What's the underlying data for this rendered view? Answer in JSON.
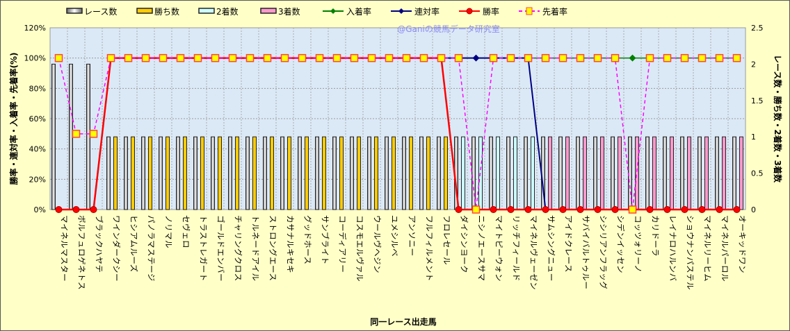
{
  "chart_data": {
    "type": "bar+line",
    "watermark": "@Ganiの競馬データ研究室",
    "xlabel": "同一レース出走馬",
    "ylabel_left": "勝率・連対率・入着率・先着率(%)",
    "ylabel_right": "レース数・勝ち数・2着数・3着数",
    "ylim_left": [
      0,
      120
    ],
    "yticks_left": [
      "0%",
      "20%",
      "40%",
      "60%",
      "80%",
      "100%",
      "120%"
    ],
    "ylim_right": [
      0,
      2.5
    ],
    "yticks_right": [
      "0",
      "0.5",
      "1",
      "1.5",
      "2",
      "2.5"
    ],
    "grid": true,
    "legend_position": "top",
    "legend": [
      {
        "name": "レース数",
        "kind": "bar",
        "color": "#ffffff"
      },
      {
        "name": "勝ち数",
        "kind": "bar",
        "color": "#ffcc00"
      },
      {
        "name": "2着数",
        "kind": "bar",
        "color": "#ccffff"
      },
      {
        "name": "3着数",
        "kind": "bar",
        "color": "#ff99cc"
      },
      {
        "name": "入着率",
        "kind": "line",
        "color": "#008000"
      },
      {
        "name": "連対率",
        "kind": "line",
        "color": "#000080"
      },
      {
        "name": "勝率",
        "kind": "line",
        "color": "#ff0000"
      },
      {
        "name": "先着率",
        "kind": "dash",
        "color": "#ff00ff"
      }
    ],
    "categories": [
      "マイネルマスター",
      "ボルフュロゲネトス",
      "ブラックハヤテ",
      "ワインダークシー",
      "ヒシアムルーズ",
      "パノラマステージ",
      "ノリマル",
      "セヴェロ",
      "トラストレガート",
      "ゴールドエンバー",
      "チャリングクロス",
      "トルネードアイル",
      "ストロングエース",
      "カサナルキセキ",
      "グッドホース",
      "サンブライト",
      "コーディアリー",
      "コスモエルヴァル",
      "ウールヴヘジン",
      "ユメシルベ",
      "アンソニー",
      "フルフィルメント",
      "フロレセール",
      "ダイシンヨーク",
      "ニシノエースサマ",
      "マイトピーウォン",
      "リッチフィールド",
      "マイネルヴェーゼン",
      "サムシングニュー",
      "アイドクレース",
      "サバイバルトゥルー",
      "シシリアンフラッグ",
      "シデンイッセン",
      "コッツォリーノ",
      "カリドーラ",
      "レイナロハルンバ",
      "ショウナンパステル",
      "マイネルリーヒム",
      "マイネルパーロル",
      "オーキッドワン"
    ],
    "races": [
      2,
      2,
      2,
      1,
      1,
      1,
      1,
      1,
      1,
      1,
      1,
      1,
      1,
      1,
      1,
      1,
      1,
      1,
      1,
      1,
      1,
      1,
      1,
      1,
      1,
      1,
      1,
      1,
      1,
      1,
      1,
      1,
      1,
      1,
      1,
      1,
      1,
      1,
      1,
      1
    ],
    "wins": [
      0,
      0,
      0,
      1,
      1,
      1,
      1,
      1,
      1,
      1,
      1,
      1,
      1,
      1,
      1,
      1,
      1,
      1,
      1,
      1,
      1,
      1,
      1,
      0,
      0,
      0,
      0,
      0,
      0,
      0,
      0,
      0,
      0,
      0,
      0,
      0,
      0,
      0,
      0,
      0
    ],
    "seconds": [
      0,
      0,
      0,
      0,
      0,
      0,
      0,
      0,
      0,
      0,
      0,
      0,
      0,
      0,
      0,
      0,
      0,
      0,
      0,
      0,
      0,
      0,
      0,
      1,
      1,
      1,
      1,
      1,
      0,
      0,
      0,
      0,
      0,
      0,
      0,
      0,
      0,
      0,
      0,
      0
    ],
    "thirds": [
      0,
      0,
      0,
      0,
      0,
      0,
      0,
      0,
      0,
      0,
      0,
      0,
      0,
      0,
      0,
      0,
      0,
      0,
      0,
      0,
      0,
      0,
      0,
      0,
      0,
      0,
      0,
      0,
      1,
      1,
      1,
      1,
      1,
      1,
      1,
      1,
      1,
      1,
      1,
      1
    ],
    "win_rate": [
      0,
      0,
      0,
      100,
      100,
      100,
      100,
      100,
      100,
      100,
      100,
      100,
      100,
      100,
      100,
      100,
      100,
      100,
      100,
      100,
      100,
      100,
      100,
      0,
      0,
      0,
      0,
      0,
      0,
      0,
      0,
      0,
      0,
      0,
      0,
      0,
      0,
      0,
      0,
      0
    ],
    "rentai_rate": [
      0,
      0,
      0,
      100,
      100,
      100,
      100,
      100,
      100,
      100,
      100,
      100,
      100,
      100,
      100,
      100,
      100,
      100,
      100,
      100,
      100,
      100,
      100,
      100,
      100,
      100,
      100,
      100,
      0,
      0,
      0,
      0,
      0,
      0,
      0,
      0,
      0,
      0,
      0,
      0
    ],
    "nyuchaku_rate": [
      0,
      0,
      0,
      100,
      100,
      100,
      100,
      100,
      100,
      100,
      100,
      100,
      100,
      100,
      100,
      100,
      100,
      100,
      100,
      100,
      100,
      100,
      100,
      100,
      100,
      100,
      100,
      100,
      100,
      100,
      100,
      100,
      100,
      100,
      100,
      100,
      100,
      100,
      100,
      100
    ],
    "senchaku_rate": [
      100,
      50,
      50,
      100,
      100,
      100,
      100,
      100,
      100,
      100,
      100,
      100,
      100,
      100,
      100,
      100,
      100,
      100,
      100,
      100,
      100,
      100,
      100,
      100,
      0,
      100,
      100,
      100,
      100,
      100,
      100,
      100,
      100,
      0,
      100,
      100,
      100,
      100,
      100,
      100
    ]
  }
}
